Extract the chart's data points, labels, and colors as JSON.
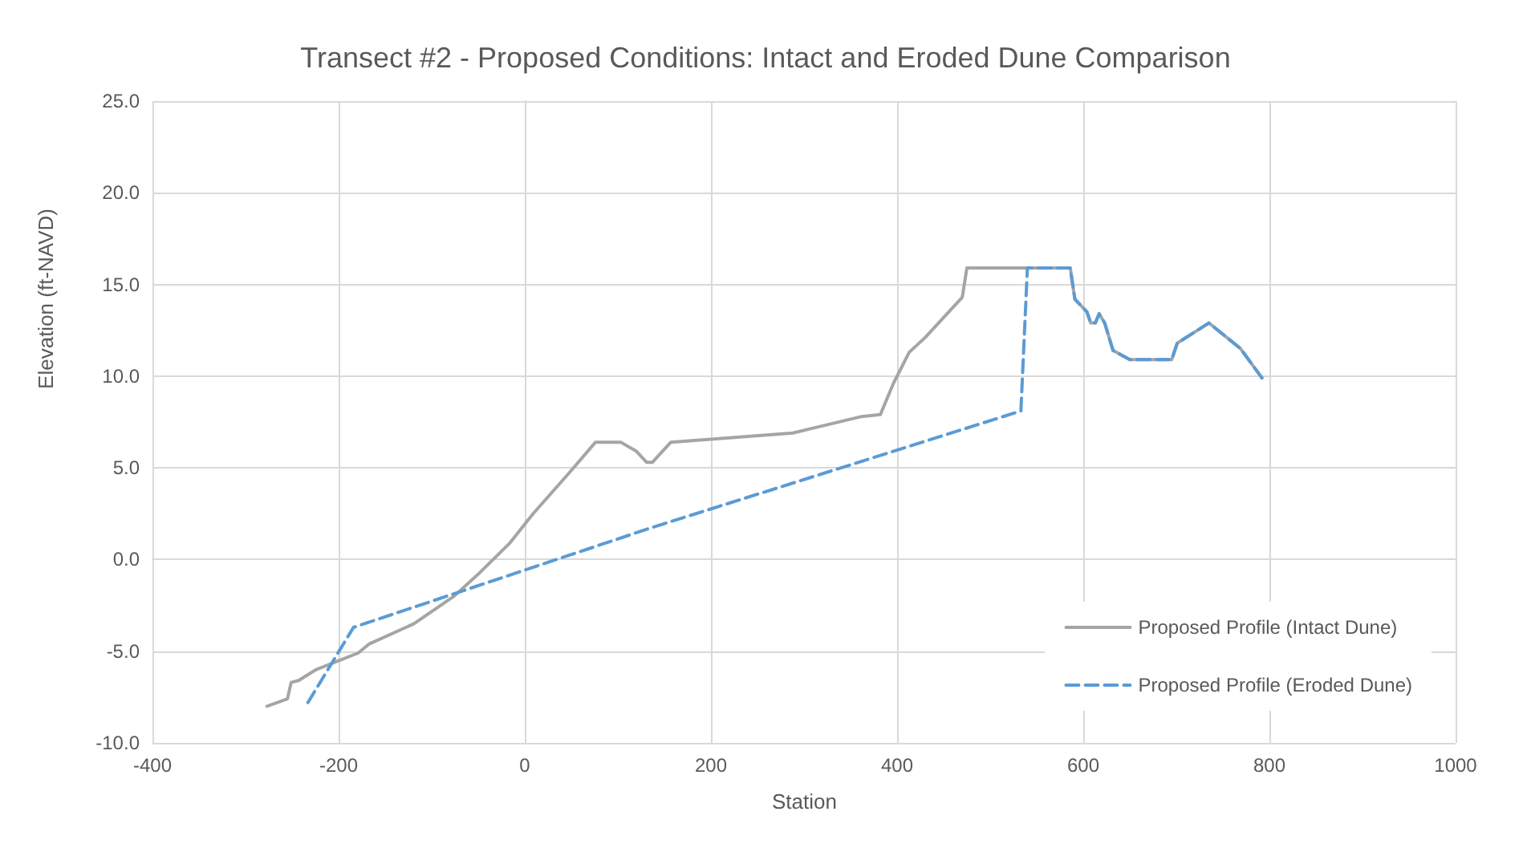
{
  "chart_data": {
    "type": "line",
    "title": "Transect #2 - Proposed Conditions: Intact and Eroded Dune Comparison",
    "xlabel": "Station",
    "ylabel": "Elevation (ft-NAVD)",
    "xlim": [
      -400,
      1000
    ],
    "xticks": [
      -400,
      -200,
      0,
      200,
      400,
      600,
      800,
      1000
    ],
    "ylim": [
      -10,
      25
    ],
    "yticks": [
      {
        "value": -10,
        "label": "-10.0"
      },
      {
        "value": -5,
        "label": "-5.0"
      },
      {
        "value": 0,
        "label": "0.0"
      },
      {
        "value": 5,
        "label": "5.0"
      },
      {
        "value": 10,
        "label": "10.0"
      },
      {
        "value": 15,
        "label": "15.0"
      },
      {
        "value": 20,
        "label": "20.0"
      },
      {
        "value": 25,
        "label": "25.0"
      }
    ],
    "grid": true,
    "legend": "bottom right",
    "marker": "none",
    "series": [
      {
        "name": "Proposed Profile (Intact Dune)",
        "color": "#a5a5a5",
        "line_style": "solid",
        "x": [
          -277,
          -255,
          -251,
          -243,
          -224,
          -204,
          -179,
          -167,
          -119,
          -76,
          -48,
          -16,
          9,
          49,
          76,
          103,
          120,
          131,
          137,
          157,
          288,
          362,
          382,
          396,
          413,
          430,
          470,
          475,
          586,
          591,
          604,
          608,
          613,
          617,
          623,
          632,
          650,
          695,
          701,
          735,
          769,
          792
        ],
        "values": [
          -8.0,
          -7.6,
          -6.7,
          -6.6,
          -6.0,
          -5.6,
          -5.1,
          -4.6,
          -3.5,
          -2.0,
          -0.7,
          0.9,
          2.5,
          4.8,
          6.4,
          6.4,
          5.9,
          5.3,
          5.3,
          6.4,
          6.9,
          7.8,
          7.9,
          9.6,
          11.3,
          12.1,
          14.3,
          15.9,
          15.9,
          14.2,
          13.5,
          12.9,
          12.9,
          13.4,
          12.9,
          11.4,
          10.9,
          10.9,
          11.8,
          12.9,
          11.5,
          9.9
        ]
      },
      {
        "name": "Proposed Profile (Eroded Dune)",
        "color": "#5b9bd5",
        "line_style": "dashed",
        "x": [
          -233,
          -184,
          134,
          533,
          540,
          586,
          591,
          604,
          608,
          613,
          617,
          623,
          632,
          650,
          695,
          701,
          735,
          769,
          792
        ],
        "values": [
          -7.8,
          -3.7,
          1.7,
          8.1,
          15.9,
          15.9,
          14.2,
          13.5,
          12.9,
          12.9,
          13.4,
          12.9,
          11.4,
          10.9,
          10.9,
          11.8,
          12.9,
          11.5,
          9.9
        ]
      }
    ]
  }
}
